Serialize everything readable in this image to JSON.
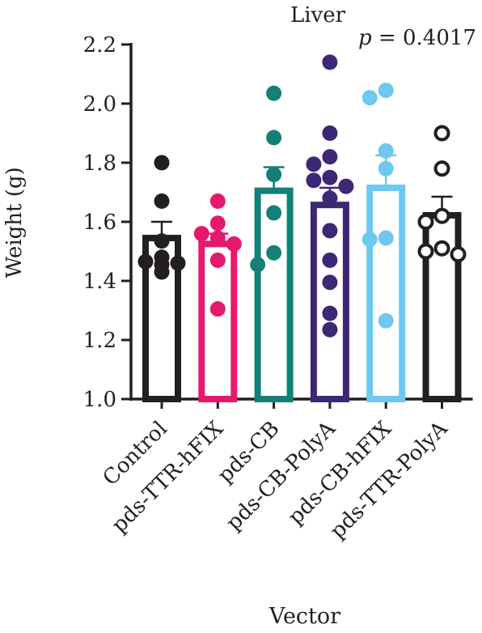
{
  "chart_data": {
    "type": "bar",
    "title": "Liver",
    "annotation": "p = 0.4017",
    "annotation_parts": {
      "italic": "p",
      "rest": " = 0.4017"
    },
    "xlabel": "Vector",
    "ylabel": "Weight (g)",
    "ylim": [
      1.0,
      2.2
    ],
    "yticks": [
      "1.0",
      "1.2",
      "1.4",
      "1.6",
      "1.8",
      "2.0",
      "2.2"
    ],
    "grid": false,
    "categories": [
      "Control",
      "pds-TTR-hFIX",
      "pds-CB",
      "pds-CB-PolyA",
      "pds-CB-hFIX",
      "pds-TTR-PolyA"
    ],
    "colors": [
      "#231f20",
      "#e6186d",
      "#138078",
      "#3d2875",
      "#6ec8f0",
      "#231f20"
    ],
    "marker_fill": [
      "filled",
      "filled",
      "filled",
      "filled",
      "filled",
      "open"
    ],
    "means": [
      1.545,
      1.525,
      1.705,
      1.657,
      1.715,
      1.622
    ],
    "sem_upper": [
      1.6,
      1.56,
      1.785,
      1.715,
      1.825,
      1.685
    ],
    "points": [
      [
        1.8,
        1.67,
        1.535,
        1.48,
        1.465,
        1.46,
        1.455,
        1.43
      ],
      [
        1.67,
        1.595,
        1.56,
        1.545,
        1.525,
        1.47,
        1.305
      ],
      [
        2.035,
        1.885,
        1.76,
        1.63,
        1.495,
        1.455
      ],
      [
        2.14,
        1.9,
        1.82,
        1.795,
        1.75,
        1.74,
        1.72,
        1.68,
        1.57,
        1.47,
        1.395,
        1.29,
        1.235
      ],
      [
        2.045,
        2.02,
        1.84,
        1.78,
        1.545,
        1.54,
        1.265
      ],
      [
        1.9,
        1.78,
        1.62,
        1.6,
        1.51,
        1.5,
        1.49
      ]
    ]
  }
}
